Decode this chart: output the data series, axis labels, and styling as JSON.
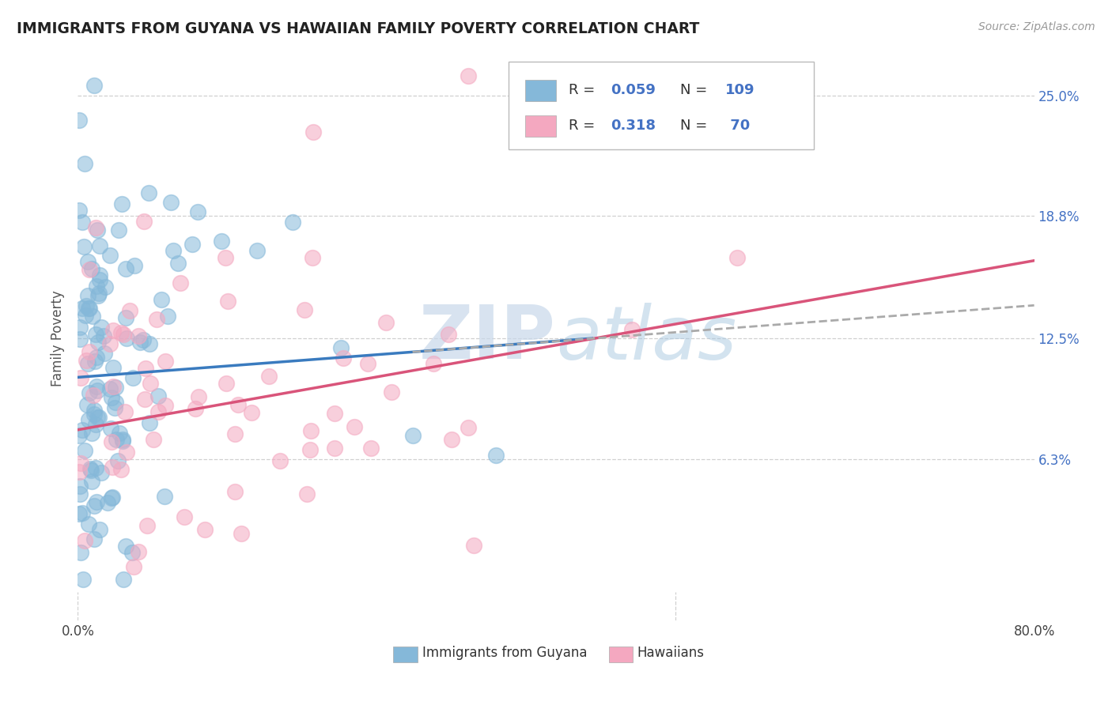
{
  "title": "IMMIGRANTS FROM GUYANA VS HAWAIIAN FAMILY POVERTY CORRELATION CHART",
  "source": "Source: ZipAtlas.com",
  "ylabel": "Family Poverty",
  "blue_color": "#85b8d9",
  "pink_color": "#f4a8c0",
  "blue_line_color": "#3a7bbf",
  "pink_line_color": "#d9547a",
  "dashed_line_color": "#aaaaaa",
  "watermark_color": "#c8d8ea",
  "background_color": "#ffffff",
  "grid_color": "#d0d0d0",
  "xlim": [
    0.0,
    0.8
  ],
  "ylim": [
    -0.02,
    0.27
  ],
  "ytick_vals": [
    0.063,
    0.125,
    0.188,
    0.25
  ],
  "ytick_labels": [
    "6.3%",
    "12.5%",
    "18.8%",
    "25.0%"
  ],
  "blue_r": 0.059,
  "blue_n": 109,
  "pink_r": 0.318,
  "pink_n": 70,
  "blue_trend": [
    0.0,
    0.43,
    0.105,
    0.125
  ],
  "pink_trend": [
    0.0,
    0.8,
    0.078,
    0.165
  ],
  "dashed_trend": [
    0.28,
    0.8,
    0.118,
    0.142
  ]
}
